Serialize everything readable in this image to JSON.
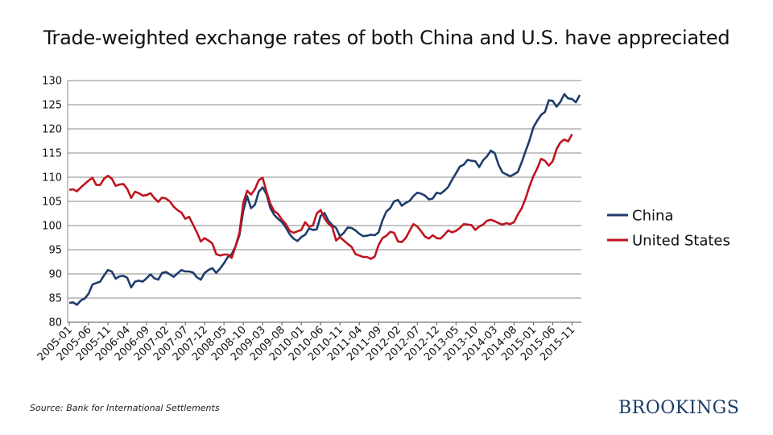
{
  "chart_data": {
    "type": "line",
    "title": "Trade-weighted exchange rates of both China and U.S. have appreciated",
    "xlabel": "",
    "ylabel": "",
    "ylim": [
      80,
      130
    ],
    "yticks": [
      80,
      85,
      90,
      95,
      100,
      105,
      110,
      115,
      120,
      125,
      130
    ],
    "grid": true,
    "legend_position": "right",
    "x_tick_labels": [
      "2005-01",
      "2005-06",
      "2005-11",
      "2006-04",
      "2006-09",
      "2007-02",
      "2007-07",
      "2007-12",
      "2008-05",
      "2008-10",
      "2009-03",
      "2009-08",
      "2010-01",
      "2010-06",
      "2010-11",
      "2011-04",
      "2011-09",
      "2012-02",
      "2012-07",
      "2012-12",
      "2013-05",
      "2013-10",
      "2014-03",
      "2014-08",
      "2015-01",
      "2015-06",
      "2015-11"
    ],
    "series": [
      {
        "name": "China",
        "color": "#1f3d6b",
        "values": [
          84.0,
          84.1,
          83.6,
          84.5,
          84.9,
          85.9,
          87.8,
          88.1,
          88.4,
          89.7,
          90.8,
          90.5,
          89.0,
          89.5,
          89.6,
          89.2,
          87.2,
          88.4,
          88.6,
          88.4,
          89.1,
          89.9,
          89.1,
          88.8,
          90.2,
          90.4,
          89.9,
          89.4,
          90.1,
          90.8,
          90.5,
          90.5,
          90.3,
          89.3,
          88.8,
          90.2,
          90.8,
          91.2,
          90.2,
          91.1,
          92.2,
          93.5,
          94.1,
          95.7,
          98.0,
          103.0,
          106.1,
          103.6,
          104.3,
          107.0,
          107.9,
          106.5,
          103.6,
          102.2,
          101.4,
          100.7,
          99.6,
          98.2,
          97.3,
          96.8,
          97.6,
          98.1,
          99.4,
          99.1,
          99.2,
          102.0,
          102.6,
          101.0,
          100.1,
          99.5,
          97.8,
          98.5,
          99.6,
          99.5,
          99.0,
          98.3,
          97.8,
          97.9,
          98.1,
          98.0,
          98.6,
          101.1,
          102.9,
          103.6,
          105.0,
          105.3,
          104.1,
          104.7,
          105.1,
          106.1,
          106.8,
          106.6,
          106.2,
          105.4,
          105.6,
          106.8,
          106.6,
          107.2,
          108.0,
          109.5,
          110.8,
          112.2,
          112.6,
          113.6,
          113.4,
          113.3,
          112.1,
          113.5,
          114.3,
          115.5,
          115.0,
          112.6,
          111.0,
          110.6,
          110.2,
          110.6,
          111.1,
          113.1,
          115.4,
          117.6,
          120.3,
          121.7,
          122.9,
          123.5,
          125.9,
          125.8,
          124.6,
          125.6,
          127.2,
          126.3,
          126.2,
          125.5,
          127.0
        ]
      },
      {
        "name": "United States",
        "color": "#c0141e",
        "values": [
          107.4,
          107.5,
          107.1,
          107.9,
          108.6,
          109.3,
          109.9,
          108.4,
          108.4,
          109.7,
          110.3,
          109.7,
          108.2,
          108.5,
          108.6,
          107.6,
          105.7,
          107.0,
          106.7,
          106.2,
          106.3,
          106.7,
          105.7,
          104.9,
          105.8,
          105.6,
          105.0,
          103.9,
          103.2,
          102.7,
          101.4,
          101.8,
          100.2,
          98.6,
          96.7,
          97.4,
          96.9,
          96.3,
          94.1,
          93.8,
          94.0,
          94.0,
          93.3,
          95.7,
          98.5,
          104.7,
          107.2,
          106.4,
          107.5,
          109.4,
          109.9,
          107.0,
          104.5,
          103.0,
          102.4,
          101.2,
          100.3,
          98.9,
          98.5,
          98.8,
          99.1,
          100.7,
          99.8,
          100.0,
          102.5,
          103.2,
          101.5,
          100.4,
          99.7,
          96.9,
          97.6,
          96.9,
          96.2,
          95.6,
          94.1,
          93.8,
          93.5,
          93.5,
          93.1,
          93.6,
          96.0,
          97.4,
          97.9,
          98.7,
          98.5,
          96.7,
          96.6,
          97.4,
          98.9,
          100.3,
          99.8,
          98.8,
          97.7,
          97.3,
          98.0,
          97.4,
          97.3,
          98.1,
          99.0,
          98.6,
          98.9,
          99.5,
          100.3,
          100.2,
          100.1,
          99.1,
          99.8,
          100.2,
          101.0,
          101.2,
          100.9,
          100.5,
          100.2,
          100.5,
          100.3,
          100.7,
          102.3,
          103.6,
          105.6,
          108.1,
          110.2,
          111.8,
          113.8,
          113.4,
          112.4,
          113.3,
          115.8,
          117.2,
          117.8,
          117.4,
          118.9
        ]
      }
    ]
  },
  "source_text": "Source: Bank for International Settlements",
  "logo_text": "BROOKINGS"
}
